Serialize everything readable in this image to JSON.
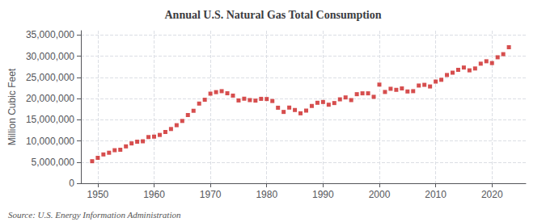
{
  "chart_data": {
    "type": "scatter",
    "title": "Annual U.S. Natural Gas Total Consumption",
    "ylabel": "Million Cubic Feet",
    "source": "Source: U.S. Energy Information Administration",
    "color": "#cc2222",
    "marker": "square",
    "grid": true,
    "xlim": [
      1947,
      2026
    ],
    "ylim": [
      0,
      36000000
    ],
    "xticks": [
      1950,
      1960,
      1970,
      1980,
      1990,
      2000,
      2010,
      2020
    ],
    "yticks": [
      {
        "value": 0,
        "label": "0"
      },
      {
        "value": 5000000,
        "label": "5,000,000"
      },
      {
        "value": 10000000,
        "label": "10,000,000"
      },
      {
        "value": 15000000,
        "label": "15,000,000"
      },
      {
        "value": 20000000,
        "label": "20,000,000"
      },
      {
        "value": 25000000,
        "label": "25,000,000"
      },
      {
        "value": 30000000,
        "label": "30,000,000"
      },
      {
        "value": 35000000,
        "label": "35,000,000"
      }
    ],
    "x": [
      1949,
      1950,
      1951,
      1952,
      1953,
      1954,
      1955,
      1956,
      1957,
      1958,
      1959,
      1960,
      1961,
      1962,
      1963,
      1964,
      1965,
      1966,
      1967,
      1968,
      1969,
      1970,
      1971,
      1972,
      1973,
      1974,
      1975,
      1976,
      1977,
      1978,
      1979,
      1980,
      1981,
      1982,
      1983,
      1984,
      1985,
      1986,
      1987,
      1988,
      1989,
      1990,
      1991,
      1992,
      1993,
      1994,
      1995,
      1996,
      1997,
      1998,
      1999,
      2000,
      2001,
      2002,
      2003,
      2004,
      2005,
      2006,
      2007,
      2008,
      2009,
      2010,
      2011,
      2012,
      2013,
      2014,
      2015,
      2016,
      2017,
      2018,
      2019,
      2020,
      2021,
      2022,
      2023
    ],
    "values": [
      5200000,
      6000000,
      6800000,
      7200000,
      7800000,
      7900000,
      8700000,
      9400000,
      9800000,
      9900000,
      10900000,
      11000000,
      11400000,
      12100000,
      12800000,
      13700000,
      14700000,
      16100000,
      17100000,
      18800000,
      19700000,
      21140000,
      21500000,
      21730000,
      21230000,
      20680000,
      19540000,
      19950000,
      19620000,
      19500000,
      19917000,
      19877000,
      19404000,
      17821000,
      16829000,
      17854000,
      17281000,
      16503000,
      17143000,
      18237000,
      18987000,
      19174000,
      18534000,
      18926000,
      19798000,
      20249000,
      19623000,
      21017000,
      21217000,
      21217000,
      20396000,
      23277000,
      21540000,
      22291000,
      22042000,
      22374000,
      21655000,
      21732000,
      23054000,
      23222000,
      22837000,
      23990000,
      24409000,
      25541000,
      26090000,
      26762000,
      27302000,
      26643000,
      27082000,
      28212000,
      28787000,
      28357000,
      29724000,
      30458000,
      32095000
    ]
  }
}
